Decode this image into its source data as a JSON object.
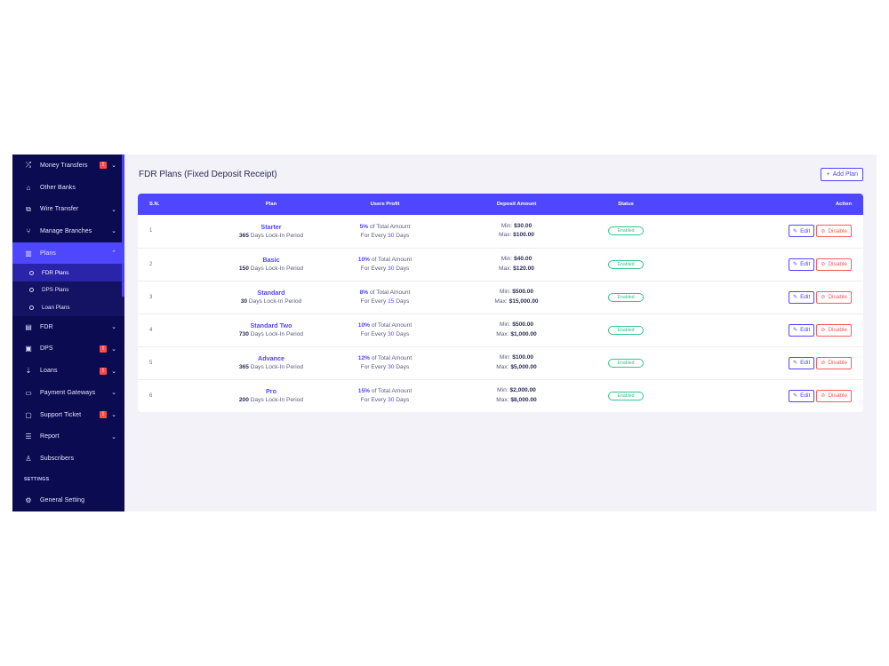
{
  "sidebar": {
    "items_top": [
      {
        "label": "Money Transfers",
        "icon": "shuffle-icon",
        "badge": "!",
        "chevron": "⌄"
      },
      {
        "label": "Other Banks",
        "icon": "bank-icon",
        "badge": null,
        "chevron": null
      },
      {
        "label": "Wire Transfer",
        "icon": "wire-icon",
        "badge": null,
        "chevron": "⌄"
      },
      {
        "label": "Manage Branches",
        "icon": "branch-icon",
        "badge": null,
        "chevron": "⌄"
      },
      {
        "label": "Plans",
        "icon": "chart-icon",
        "badge": null,
        "chevron": "⌃",
        "active": true
      }
    ],
    "plans_subitems": [
      {
        "label": "FDR Plans",
        "active": true
      },
      {
        "label": "DPS Plans",
        "active": false
      },
      {
        "label": "Loan Plans",
        "active": false
      }
    ],
    "items_bottom": [
      {
        "label": "FDR",
        "icon": "fdr-icon",
        "badge": null,
        "chevron": "⌄"
      },
      {
        "label": "DPS",
        "icon": "calendar-icon",
        "badge": "!",
        "chevron": "⌄"
      },
      {
        "label": "Loans",
        "icon": "loan-icon",
        "badge": "!",
        "chevron": "⌄"
      },
      {
        "label": "Payment Gateways",
        "icon": "card-icon",
        "badge": null,
        "chevron": "⌄"
      },
      {
        "label": "Support Ticket",
        "icon": "ticket-icon",
        "badge": "!",
        "chevron": "⌄"
      },
      {
        "label": "Report",
        "icon": "list-icon",
        "badge": null,
        "chevron": "⌄"
      },
      {
        "label": "Subscribers",
        "icon": "thumbs-up-icon",
        "badge": null,
        "chevron": null
      }
    ],
    "section_settings": "SETTINGS",
    "items_settings": [
      {
        "label": "General Setting",
        "icon": "gear-icon",
        "badge": null,
        "chevron": null
      }
    ]
  },
  "header": {
    "title": "FDR Plans (Fixed Deposit Receipt)",
    "add_button": "Add Plan",
    "add_icon": "+"
  },
  "table": {
    "columns": [
      "S.N.",
      "Plan",
      "Users Profit",
      "Deposit Amount",
      "Status",
      "Action"
    ],
    "rows": [
      {
        "sn": "1",
        "name": "Starter",
        "days": "365",
        "days_suffix": "Days Lock-In Period",
        "profit_pct": "5%",
        "profit_suffix": "of Total Amount",
        "every_prefix": "For Every",
        "every_num": "30",
        "every_suffix": "Days",
        "min_label": "Min:",
        "min": "$30.00",
        "max_label": "Max:",
        "max": "$100.00",
        "status": "Enabled",
        "edit": "Edit",
        "disable": "Disable"
      },
      {
        "sn": "2",
        "name": "Basic",
        "days": "150",
        "days_suffix": "Days Lock-In Period",
        "profit_pct": "10%",
        "profit_suffix": "of Total Amount",
        "every_prefix": "For Every",
        "every_num": "30",
        "every_suffix": "Days",
        "min_label": "Min:",
        "min": "$40.00",
        "max_label": "Max:",
        "max": "$120.00",
        "status": "Enabled",
        "edit": "Edit",
        "disable": "Disable"
      },
      {
        "sn": "3",
        "name": "Standard",
        "days": "30",
        "days_suffix": "Days Lock-In Period",
        "profit_pct": "8%",
        "profit_suffix": "of Total Amount",
        "every_prefix": "For Every",
        "every_num": "15",
        "every_suffix": "Days",
        "min_label": "Min:",
        "min": "$500.00",
        "max_label": "Max:",
        "max": "$15,000.00",
        "status": "Enabled",
        "edit": "Edit",
        "disable": "Disable"
      },
      {
        "sn": "4",
        "name": "Standard Two",
        "days": "730",
        "days_suffix": "Days Lock-In Period",
        "profit_pct": "10%",
        "profit_suffix": "of Total Amount",
        "every_prefix": "For Every",
        "every_num": "30",
        "every_suffix": "Days",
        "min_label": "Min:",
        "min": "$500.00",
        "max_label": "Max:",
        "max": "$1,000.00",
        "status": "Enabled",
        "edit": "Edit",
        "disable": "Disable"
      },
      {
        "sn": "5",
        "name": "Advance",
        "days": "365",
        "days_suffix": "Days Lock-In Period",
        "profit_pct": "12%",
        "profit_suffix": "of Total Amount",
        "every_prefix": "For Every",
        "every_num": "30",
        "every_suffix": "Days",
        "min_label": "Min:",
        "min": "$100.00",
        "max_label": "Max:",
        "max": "$5,000.00",
        "status": "Enabled",
        "edit": "Edit",
        "disable": "Disable"
      },
      {
        "sn": "6",
        "name": "Pro",
        "days": "200",
        "days_suffix": "Days Lock-In Period",
        "profit_pct": "15%",
        "profit_suffix": "of Total Amount",
        "every_prefix": "For Every",
        "every_num": "30",
        "every_suffix": "Days",
        "min_label": "Min:",
        "min": "$2,000.00",
        "max_label": "Max:",
        "max": "$8,000.00",
        "status": "Enabled",
        "edit": "Edit",
        "disable": "Disable"
      }
    ]
  },
  "colors": {
    "sidebar_bg": "#0b0b52",
    "accent": "#4f46ff",
    "status_green": "#34c38f",
    "danger": "#ff5b5b",
    "badge_red": "#ff4b4b"
  }
}
